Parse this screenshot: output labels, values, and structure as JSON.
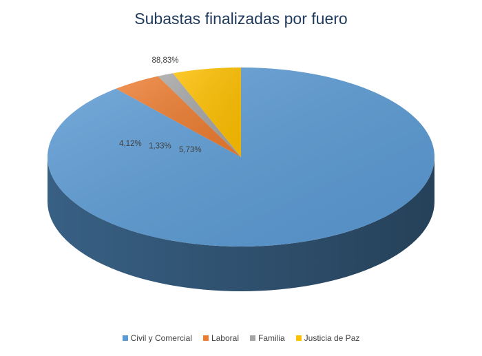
{
  "chart_data": {
    "type": "pie",
    "title": "Subastas finalizadas por fuero",
    "categories": [
      "Civil y Comercial",
      "Laboral",
      "Familia",
      "Justicia de Paz"
    ],
    "values": [
      88.83,
      4.12,
      1.33,
      5.73
    ],
    "data_labels": [
      "88,83%",
      "4,12%",
      "1,33%",
      "5,73%"
    ],
    "colors": [
      "#5b9bd5",
      "#ed7d31",
      "#a5a5a5",
      "#ffc000"
    ],
    "legend_position": "bottom",
    "style": "3d"
  }
}
